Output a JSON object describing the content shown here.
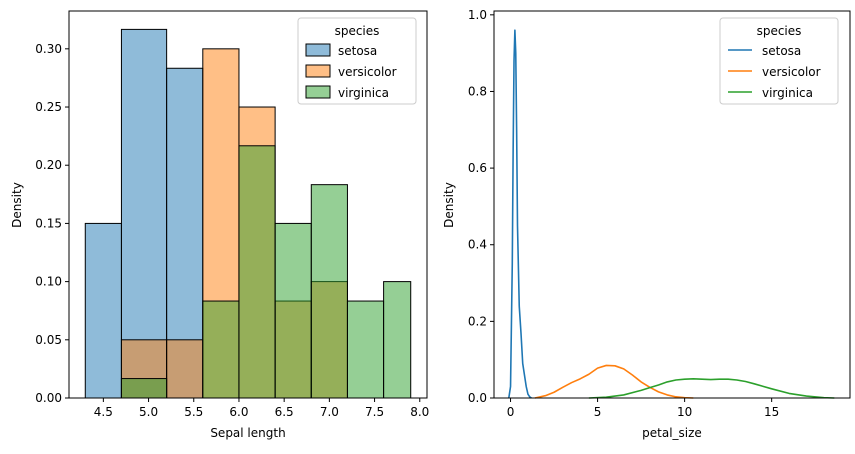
{
  "chart_data": [
    {
      "type": "bar",
      "name": "histogram",
      "xlabel": "Sepal length",
      "ylabel": "Density",
      "xlim": [
        4.12,
        8.08
      ],
      "ylim": [
        0,
        0.3325
      ],
      "xticks": [
        4.5,
        5.0,
        5.5,
        6.0,
        6.5,
        7.0,
        7.5,
        8.0
      ],
      "xtick_labels": [
        "4.5",
        "5.0",
        "5.5",
        "6.0",
        "6.5",
        "7.0",
        "7.5",
        "8.0"
      ],
      "yticks": [
        0.0,
        0.05,
        0.1,
        0.15,
        0.2,
        0.25,
        0.3
      ],
      "ytick_labels": [
        "0.00",
        "0.05",
        "0.10",
        "0.15",
        "0.20",
        "0.25",
        "0.30"
      ],
      "bin_edges": [
        4.3,
        4.7,
        5.2,
        5.6,
        6.0,
        6.4,
        6.8,
        7.2,
        7.6,
        7.9
      ],
      "series": [
        {
          "name": "setosa",
          "color": "#1f77b4",
          "values": [
            0.15,
            0.3167,
            0.2833,
            0.0,
            0.0,
            0.0,
            0.0,
            0.0,
            0.0
          ]
        },
        {
          "name": "versicolor",
          "color": "#ff7f0e",
          "values": [
            0.0,
            0.05,
            0.05,
            0.3,
            0.25,
            0.0833,
            0.1,
            0.0,
            0.0
          ]
        },
        {
          "name": "virginica",
          "color": "#2ca02c",
          "values": [
            0.0,
            0.0167,
            0.0,
            0.0833,
            0.2167,
            0.15,
            0.1833,
            0.0833,
            0.1
          ]
        }
      ],
      "legend": {
        "title": "species",
        "entries": [
          "setosa",
          "versicolor",
          "virginica"
        ],
        "position": "top-right"
      }
    },
    {
      "type": "line",
      "name": "kde",
      "xlabel": "petal_size",
      "ylabel": "Density",
      "xlim": [
        -0.95,
        19.5
      ],
      "ylim": [
        0,
        1.01
      ],
      "xticks": [
        0,
        5,
        10,
        15
      ],
      "xtick_labels": [
        "0",
        "5",
        "10",
        "15"
      ],
      "yticks": [
        0.0,
        0.2,
        0.4,
        0.6,
        0.8,
        1.0
      ],
      "ytick_labels": [
        "0.0",
        "0.2",
        "0.4",
        "0.6",
        "0.8",
        "1.0"
      ],
      "series": [
        {
          "name": "setosa",
          "color": "#1f77b4",
          "x": [
            -0.1,
            0.0,
            0.1,
            0.15,
            0.2,
            0.25,
            0.3,
            0.35,
            0.4,
            0.5,
            0.6,
            0.7,
            0.8,
            0.9,
            1.0,
            1.1,
            1.2
          ],
          "y": [
            0.0,
            0.03,
            0.35,
            0.65,
            0.88,
            0.96,
            0.9,
            0.7,
            0.45,
            0.24,
            0.17,
            0.09,
            0.06,
            0.03,
            0.01,
            0.003,
            0.0
          ]
        },
        {
          "name": "versicolor",
          "color": "#ff7f0e",
          "x": [
            1.4,
            2.0,
            2.5,
            3.0,
            3.5,
            4.0,
            4.5,
            5.0,
            5.5,
            6.0,
            6.5,
            7.0,
            7.5,
            8.0,
            8.5,
            9.0,
            9.5,
            10.0,
            10.5
          ],
          "y": [
            0.0,
            0.006,
            0.015,
            0.028,
            0.04,
            0.05,
            0.062,
            0.078,
            0.085,
            0.084,
            0.076,
            0.06,
            0.042,
            0.028,
            0.016,
            0.008,
            0.003,
            0.001,
            0.0
          ]
        },
        {
          "name": "virginica",
          "color": "#2ca02c",
          "x": [
            4.5,
            5.5,
            6.5,
            7.5,
            8.0,
            8.5,
            9.0,
            9.5,
            10.0,
            10.5,
            11.0,
            11.5,
            12.0,
            12.5,
            13.0,
            13.5,
            14.0,
            15.0,
            16.0,
            17.0,
            18.0,
            18.6
          ],
          "y": [
            0.0,
            0.002,
            0.008,
            0.02,
            0.027,
            0.034,
            0.042,
            0.047,
            0.049,
            0.05,
            0.049,
            0.048,
            0.049,
            0.049,
            0.047,
            0.043,
            0.037,
            0.024,
            0.012,
            0.005,
            0.001,
            0.0
          ]
        }
      ],
      "legend": {
        "title": "species",
        "entries": [
          "setosa",
          "versicolor",
          "virginica"
        ],
        "position": "top-right"
      }
    }
  ]
}
